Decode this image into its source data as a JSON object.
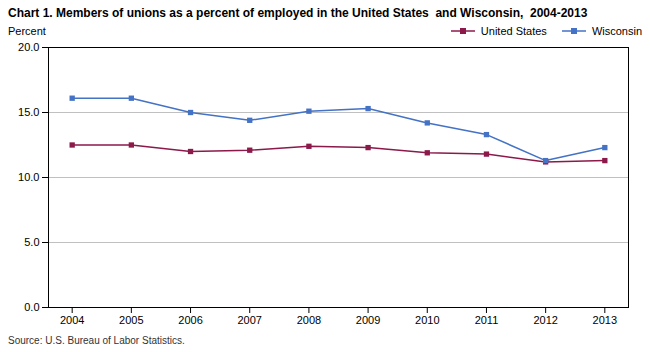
{
  "chart_data": {
    "type": "line",
    "title": "Chart 1. Members of unions as a percent of employed in the United States  and Wisconsin,  2004-2013",
    "y_label": "Percent",
    "annotations": [
      "Source: U.S. Bureau of Labor Statistics."
    ],
    "x": [
      2004,
      2005,
      2006,
      2007,
      2008,
      2009,
      2010,
      2011,
      2012,
      2013
    ],
    "series": [
      {
        "name": "United States",
        "color": "#8B1A4A",
        "marker": "square",
        "values": [
          12.5,
          12.5,
          12.0,
          12.1,
          12.4,
          12.3,
          11.9,
          11.8,
          11.2,
          11.3
        ]
      },
      {
        "name": "Wisconsin",
        "color": "#4472C4",
        "marker": "square",
        "values": [
          16.1,
          16.1,
          15.0,
          14.4,
          15.1,
          15.3,
          14.2,
          13.3,
          11.3,
          12.3
        ]
      }
    ],
    "xlim": [
      2003.6,
      2013.4
    ],
    "xticks": [
      2004,
      2005,
      2006,
      2007,
      2008,
      2009,
      2010,
      2011,
      2012,
      2013
    ],
    "ylim": [
      0,
      20
    ],
    "yticks": [
      {
        "value": 0,
        "label": "0.0"
      },
      {
        "value": 5,
        "label": "5.0"
      },
      {
        "value": 10,
        "label": "10.0"
      },
      {
        "value": 15,
        "label": "15.0"
      },
      {
        "value": 20,
        "label": "20.0"
      }
    ],
    "grid": true,
    "legend": "upper right"
  }
}
